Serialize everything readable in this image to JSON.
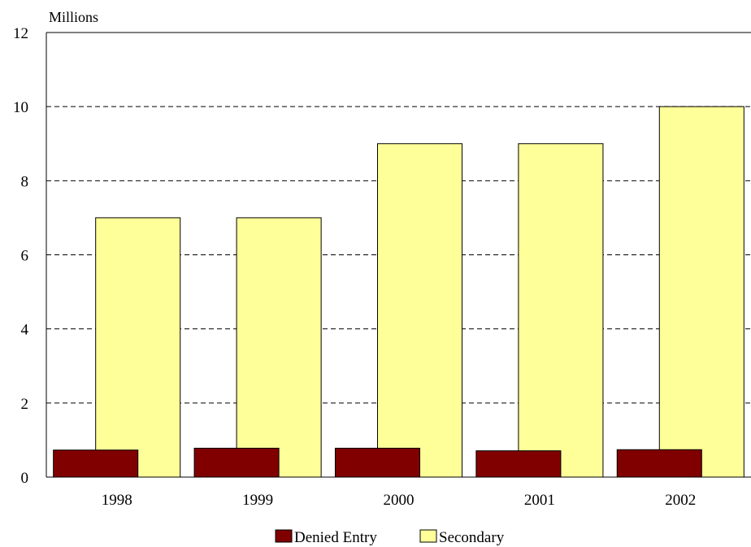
{
  "chart_data": {
    "type": "bar",
    "title": "",
    "xlabel": "",
    "ylabel": "",
    "unit_label": "Millions",
    "categories": [
      "1998",
      "1999",
      "2000",
      "2001",
      "2002"
    ],
    "series": [
      {
        "name": "Denied Entry",
        "color": "#800000",
        "values": [
          0.73,
          0.78,
          0.78,
          0.71,
          0.74
        ]
      },
      {
        "name": "Secondary",
        "color": "#FFFF99",
        "values": [
          7,
          7,
          9,
          9,
          10
        ]
      }
    ],
    "ylim": [
      0,
      12
    ],
    "yticks": [
      "0",
      "2",
      "4",
      "6",
      "8",
      "10",
      "12"
    ],
    "grid": true,
    "legend_position": "bottom"
  }
}
